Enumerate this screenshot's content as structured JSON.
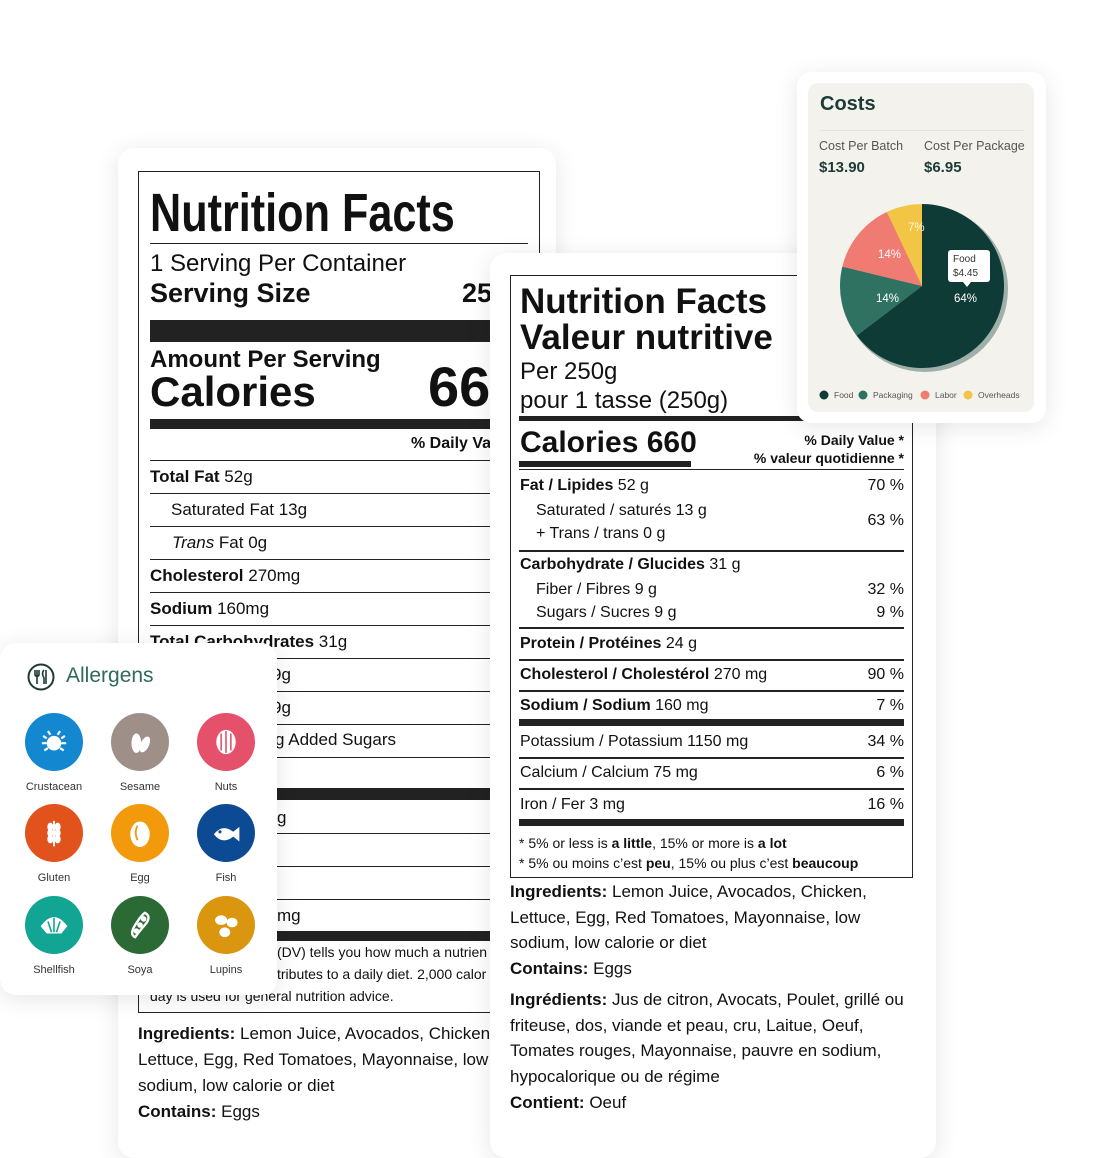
{
  "left_label": {
    "title": "Nutrition Facts",
    "servings": "1 Serving Per Container",
    "serving_size_label": "Serving Size",
    "serving_size_value": "25",
    "amount_per_serving": "Amount Per Serving",
    "calories_label": "Calories",
    "calories_value": "66",
    "daily_value_header": "% Daily Va",
    "rows": [
      {
        "bold": "Total Fat",
        "value": " 52g"
      },
      {
        "bold": "",
        "value": "Saturated Fat 13g"
      },
      {
        "italic": "Trans",
        "value": " Fat 0g"
      },
      {
        "bold": "Cholesterol",
        "value": " 270mg"
      },
      {
        "bold": "Sodium",
        "value": " 160mg"
      },
      {
        "bold": "Total Carbohydrates",
        "value": " 31g"
      }
    ],
    "fragments": [
      "9g",
      "9g",
      "g Added Sugars",
      "g",
      "mg"
    ],
    "footnote_lines": [
      "(DV) tells you how much a nutrien",
      "tributes to a daily diet. 2,000 calor",
      "day is used for general nutrition advice."
    ],
    "ingredients_label": "Ingredients:",
    "ingredients_lines": [
      " Lemon Juice, Avocados, Chicken,",
      "Lettuce, Egg, Red Tomatoes, Mayonnaise, low",
      "sodium, low calorie or diet"
    ],
    "contains_label": "Contains:",
    "contains_value": " Eggs"
  },
  "right_label": {
    "title_en": "Nutrition Facts",
    "title_fr": "Valeur nutritive",
    "per": "Per 250g",
    "per_fr": "pour 1 tasse (250g)",
    "calories": "Calories 660",
    "dv_en": "% Daily Value *",
    "dv_fr": "% valeur quotidienne *",
    "fat": {
      "bold": "Fat / Lipides",
      "value": " 52 g",
      "pct": "70 %"
    },
    "saturated": "Saturated / saturés 13 g",
    "trans": "+ Trans / trans 0 g",
    "sat_trans_pct": "63 %",
    "carb": {
      "bold": "Carbohydrate / Glucides",
      "value": " 31 g"
    },
    "fiber": {
      "value": "Fiber / Fibres 9 g",
      "pct": "32 %"
    },
    "sugars": {
      "value": "Sugars / Sucres 9 g",
      "pct": "9 %"
    },
    "protein": {
      "bold": "Protein / Protéines",
      "value": " 24 g"
    },
    "cholesterol": {
      "bold": "Cholesterol / Cholestérol",
      "value": " 270 mg",
      "pct": "90 %"
    },
    "sodium": {
      "bold": "Sodium / Sodium",
      "value": " 160 mg",
      "pct": "7 %"
    },
    "potassium": {
      "value": "Potassium / Potassium 1150 mg",
      "pct": "34 %"
    },
    "calcium": {
      "value": "Calcium / Calcium 75 mg",
      "pct": "6 %"
    },
    "iron": {
      "value": "Iron / Fer 3 mg",
      "pct": "16 %"
    },
    "foot1": {
      "a": "* 5% or less is ",
      "b": "a little",
      "c": ", 15% or more is ",
      "d": "a lot"
    },
    "foot2": {
      "a": "* 5% ou moins c’est ",
      "b": "peu",
      "c": ", 15% ou plus c’est ",
      "d": "beaucoup"
    },
    "ingredients_label": "Ingredients:",
    "ingredients_lines": [
      " Lemon Juice, Avocados, Chicken,",
      "Lettuce, Egg, Red Tomatoes, Mayonnaise, low",
      "sodium, low calorie or diet"
    ],
    "contains_label": "Contains:",
    "contains_value": " Eggs",
    "ingredients_fr_label": "Ingrédients:",
    "ingredients_fr_lines": [
      " Jus de citron, Avocats, Poulet, grillé ou",
      "friteuse, dos, viande et peau, cru, Laitue, Oeuf,",
      "Tomates rouges, Mayonnaise, pauvre en sodium,",
      "hypocalorique ou de régime"
    ],
    "contient_label": "Contient:",
    "contient_value": " Oeuf"
  },
  "costs": {
    "title": "Costs",
    "batch_label": "Cost Per Batch",
    "batch_value": "$13.90",
    "package_label": "Cost Per Package",
    "package_value": "$6.95",
    "tooltip_title": "Food",
    "tooltip_value": "$4.45"
  },
  "chart_data": {
    "type": "pie",
    "categories": [
      "Food",
      "Packaging",
      "Labor",
      "Overheads"
    ],
    "values": [
      64,
      14,
      14,
      7
    ],
    "labels": [
      "64%",
      "14%",
      "14%",
      "7%"
    ],
    "colors": [
      "#0f3b36",
      "#2f7262",
      "#f07b72",
      "#f3c545"
    ],
    "legend": "bottom"
  },
  "allergens": {
    "title": "Allergens",
    "items": [
      {
        "label": "Crustacean",
        "color": "#1387d0",
        "icon": "crab-icon"
      },
      {
        "label": "Sesame",
        "color": "#9e9088",
        "icon": "sesame-seed-icon"
      },
      {
        "label": "Nuts",
        "color": "#e5506a",
        "icon": "nut-icon"
      },
      {
        "label": "Gluten",
        "color": "#e2521c",
        "icon": "wheat-icon"
      },
      {
        "label": "Egg",
        "color": "#f29a0c",
        "icon": "egg-icon"
      },
      {
        "label": "Fish",
        "color": "#0d4a94",
        "icon": "fish-icon"
      },
      {
        "label": "Shellfish",
        "color": "#12a594",
        "icon": "shell-icon"
      },
      {
        "label": "Soya",
        "color": "#2c6a35",
        "icon": "soy-bean-icon"
      },
      {
        "label": "Lupins",
        "color": "#d9960e",
        "icon": "lupin-icon"
      }
    ]
  }
}
